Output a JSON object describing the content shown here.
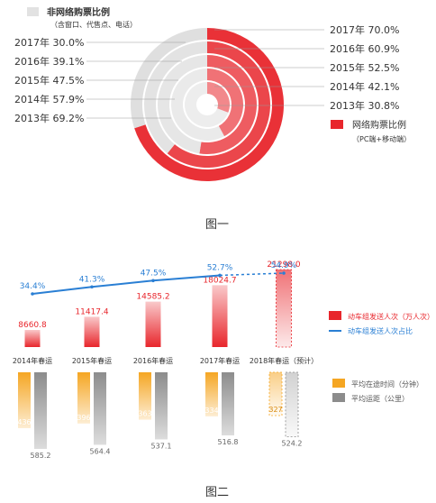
{
  "figure1": {
    "caption": "图一",
    "left_legend_title": "非网络购票比例",
    "left_legend_subtitle": "（含窗口、代售点、电话）",
    "right_legend_title": "网络购票比例",
    "right_legend_subtitle": "（PC端+移动端）",
    "colors": {
      "online": "#e8262c",
      "offline": "#dcdcdc"
    }
  },
  "figure2": {
    "caption": "图二",
    "legend": {
      "emu_passengers": "动车组发送人次（万人次）",
      "emu_share": "动车组发送人次占比",
      "avg_duration": "平均在途时间（分钟）",
      "avg_distance": "平均运距（公里）"
    },
    "colors": {
      "bar": "#e8262c",
      "line": "#2a7fd4",
      "duration": "#f5a623",
      "distance": "#8c8c8c"
    }
  },
  "chart_data": [
    {
      "type": "pie",
      "title": "",
      "categories": [
        "2013年",
        "2014年",
        "2015年",
        "2016年",
        "2017年"
      ],
      "series": [
        {
          "name": "网络购票比例",
          "values": [
            30.8,
            42.1,
            52.5,
            60.9,
            70.0
          ],
          "labels": [
            "2013年 30.8%",
            "2014年 42.1%",
            "2015年 52.5%",
            "2016年 60.9%",
            "2017年 70.0%"
          ]
        },
        {
          "name": "非网络购票比例",
          "values": [
            69.2,
            57.9,
            47.5,
            39.1,
            30.0
          ],
          "labels": [
            "2013年 69.2%",
            "2014年 57.9%",
            "2015年 47.5%",
            "2016年 39.1%",
            "2017年 30.0%"
          ]
        }
      ]
    },
    {
      "type": "bar",
      "title": "",
      "categories": [
        "2014年春运",
        "2015年春运",
        "2016年春运",
        "2017年春运",
        "2018年春运（预计）"
      ],
      "series": [
        {
          "name": "动车组发送人次（万人次）",
          "values": [
            8660.8,
            11417.4,
            14585.2,
            18024.7,
            21298.0
          ],
          "labels": [
            "8660.8",
            "11417.4",
            "14585.2",
            "18024.7",
            "21298.0"
          ]
        },
        {
          "name": "动车组发送人次占比",
          "type": "line",
          "values": [
            34.4,
            41.3,
            47.5,
            52.7,
            54.9
          ],
          "labels": [
            "34.4%",
            "41.3%",
            "47.5%",
            "52.7%",
            "54.9%"
          ]
        }
      ]
    },
    {
      "type": "bar",
      "title": "",
      "categories": [
        "2014年春运",
        "2015年春运",
        "2016年春运",
        "2017年春运",
        "2018年春运（预计）"
      ],
      "series": [
        {
          "name": "平均在途时间（分钟）",
          "values": [
            436,
            396,
            363,
            334,
            327
          ],
          "labels": [
            "436",
            "396",
            "363",
            "334",
            "327"
          ]
        },
        {
          "name": "平均运距（公里）",
          "values": [
            585.2,
            564.4,
            537.1,
            516.8,
            524.2
          ],
          "labels": [
            "585.2",
            "564.4",
            "537.1",
            "516.8",
            "524.2"
          ]
        }
      ]
    }
  ]
}
